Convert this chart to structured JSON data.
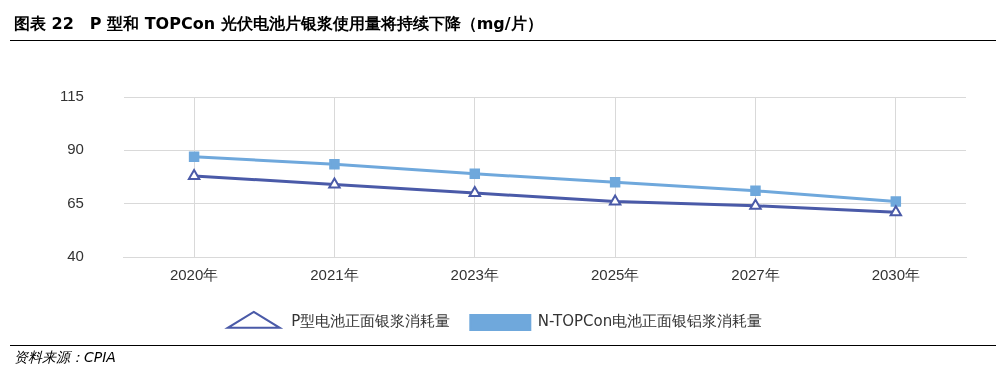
{
  "chart_data": {
    "type": "line",
    "title": "图表 22　P 型和 TOPCon 光伏电池片银浆使用量将持续下降（mg/片）",
    "categories": [
      "2020年",
      "2021年",
      "2023年",
      "2025年",
      "2027年",
      "2030年"
    ],
    "series": [
      {
        "name": "P型电池正面银浆消耗量",
        "color": "#4a5aa8",
        "marker": "triangle",
        "values": [
          78,
          74,
          70,
          66,
          64,
          61
        ]
      },
      {
        "name": "N-TOPCon电池正面银铝浆消耗量",
        "color": "#6fa8dc",
        "marker": "square",
        "values": [
          87,
          83.5,
          79,
          75,
          71,
          66
        ]
      }
    ],
    "ylim": [
      40,
      115
    ],
    "yticks": [
      40,
      65,
      90,
      115
    ],
    "grid": true,
    "legend": "bottom",
    "line_style": "solid",
    "annotations": [
      "资料来源：CPIA"
    ]
  }
}
